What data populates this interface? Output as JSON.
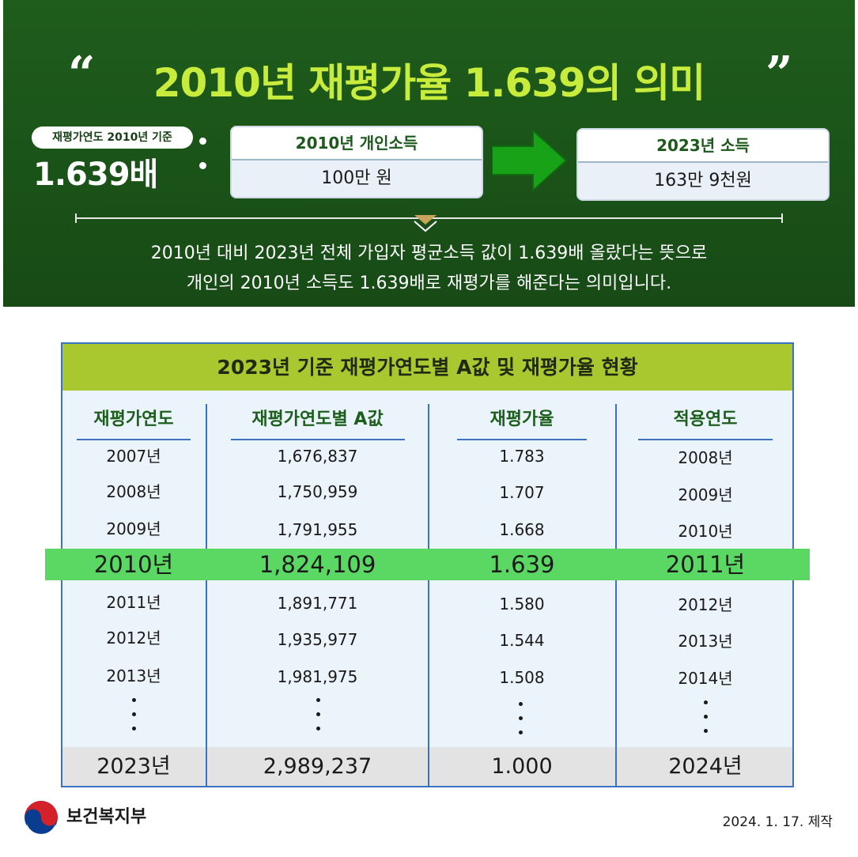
{
  "header": {
    "open_quote": "“",
    "title": "2010년 재평가율 1.639의 의미",
    "close_quote": "”",
    "reference_pill": "재평가연도 2010년 기준",
    "ratio": "1.639배"
  },
  "income_2010": {
    "label": "2010년 개인소득",
    "value": "100만 원"
  },
  "income_2023": {
    "label": "2023년 소득",
    "value": "163만 9천원"
  },
  "description": {
    "line1": "2010년 대비 2023년 전체 가입자 평균소득 값이 1.639배 올랐다는 뜻으로",
    "line2": "개인의 2010년 소득도 1.639배로 재평가를 해준다는 의미입니다."
  },
  "table": {
    "title": "2023년 기준 재평가연도별 A값 및 재평가율 현황",
    "columns": [
      "재평가연도",
      "재평가연도별 A값",
      "재평가율",
      "적용연도"
    ],
    "rows_before": [
      [
        "2007년",
        "1,676,837",
        "1.783",
        "2008년"
      ],
      [
        "2008년",
        "1,750,959",
        "1.707",
        "2009년"
      ],
      [
        "2009년",
        "1,791,955",
        "1.668",
        "2010년"
      ]
    ],
    "highlight_row": [
      "2010년",
      "1,824,109",
      "1.639",
      "2011년"
    ],
    "rows_after": [
      [
        "2011년",
        "1,891,771",
        "1.580",
        "2012년"
      ],
      [
        "2012년",
        "1,935,977",
        "1.544",
        "2013년"
      ],
      [
        "2013년",
        "1,981,975",
        "1.508",
        "2014년"
      ]
    ],
    "last_row": [
      "2023년",
      "2,989,237",
      "1.000",
      "2024년"
    ]
  },
  "footer": {
    "ministry": "보건복지부",
    "date": "2024. 1. 17. 제작"
  },
  "colors": {
    "banner_green": "#1f5d1c",
    "title_lime": "#c8ec3c",
    "table_header": "#a9c830",
    "highlight_green": "#5bd863",
    "table_border": "#3d72c0"
  }
}
